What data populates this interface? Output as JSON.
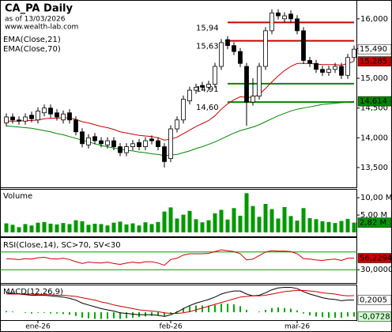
{
  "chart_data": [
    {
      "type": "candlestick",
      "title": "CA_PA Daily",
      "subtitle": "as of 13/03/2026",
      "source": "www.wealth-lab.com",
      "categories": [
        null,
        null,
        null,
        null,
        null,
        "ene-26",
        null,
        null,
        null,
        null,
        null,
        null,
        null,
        null,
        null,
        null,
        null,
        null,
        null,
        null,
        null,
        null,
        null,
        null,
        null,
        null,
        "feb-26",
        null,
        null,
        null,
        null,
        null,
        null,
        null,
        null,
        null,
        null,
        null,
        null,
        null,
        null,
        null,
        null,
        null,
        null,
        null,
        "mar-26",
        null,
        null,
        null,
        null,
        null,
        null,
        null,
        null,
        null
      ],
      "open": [
        14.25,
        14.35,
        14.3,
        14.28,
        14.38,
        14.3,
        14.42,
        14.5,
        14.42,
        14.3,
        14.42,
        14.3,
        14.1,
        13.88,
        14.02,
        13.95,
        13.88,
        13.95,
        13.85,
        13.75,
        13.85,
        13.92,
        13.85,
        13.98,
        13.95,
        13.85,
        13.65,
        14.15,
        14.3,
        14.62,
        14.8,
        14.88,
        14.85,
        14.9,
        15.2,
        15.65,
        15.55,
        15.45,
        15.2,
        14.6,
        14.7,
        15.2,
        15.8,
        16.1,
        16.0,
        16.08,
        16.0,
        15.8,
        15.3,
        15.25,
        15.15,
        15.1,
        15.15,
        15.2,
        15.05,
        15.35
      ],
      "high": [
        14.41,
        14.41,
        14.36,
        14.41,
        14.44,
        14.51,
        14.56,
        14.56,
        14.48,
        14.46,
        14.48,
        14.36,
        14.16,
        14.06,
        14.08,
        14.01,
        14.01,
        14.01,
        13.91,
        13.91,
        13.96,
        13.98,
        14.01,
        14.04,
        14.01,
        13.91,
        14.21,
        14.36,
        14.71,
        14.86,
        14.91,
        14.94,
        14.96,
        15.26,
        15.66,
        15.71,
        15.61,
        15.51,
        15.26,
        15.0,
        15.26,
        15.86,
        16.16,
        16.16,
        16.11,
        16.14,
        16.06,
        15.86,
        15.36,
        15.31,
        15.21,
        15.21,
        15.26,
        15.26,
        15.41,
        15.55
      ],
      "low": [
        14.19,
        14.24,
        14.22,
        14.22,
        14.26,
        14.24,
        14.36,
        14.34,
        14.29,
        14.24,
        14.24,
        14.04,
        13.84,
        13.82,
        13.89,
        13.84,
        13.82,
        13.79,
        13.69,
        13.69,
        13.79,
        13.79,
        13.79,
        13.89,
        13.79,
        13.5,
        13.59,
        14.09,
        14.24,
        14.56,
        14.74,
        14.79,
        14.79,
        14.84,
        15.14,
        15.49,
        15.39,
        15.19,
        14.2,
        14.54,
        14.64,
        15.14,
        15.74,
        15.99,
        15.94,
        15.94,
        15.74,
        15.24,
        15.19,
        15.09,
        15.04,
        15.04,
        15.09,
        14.99,
        14.99,
        15.29
      ],
      "close": [
        14.35,
        14.3,
        14.28,
        14.35,
        14.32,
        14.45,
        14.5,
        14.4,
        14.35,
        14.4,
        14.3,
        14.1,
        13.9,
        14.0,
        13.95,
        13.9,
        13.95,
        13.85,
        13.75,
        13.85,
        13.9,
        13.85,
        13.95,
        13.95,
        13.85,
        13.6,
        14.15,
        14.3,
        14.65,
        14.8,
        14.85,
        14.85,
        14.9,
        15.2,
        15.6,
        15.55,
        15.45,
        15.25,
        14.6,
        14.7,
        15.2,
        15.8,
        16.1,
        16.05,
        16.05,
        16.0,
        15.8,
        15.3,
        15.25,
        15.15,
        15.1,
        15.15,
        15.2,
        15.05,
        15.35,
        15.49
      ],
      "close_label": "15,490",
      "up_color": "#ffffff",
      "down_color": "#000000",
      "ylim": [
        13.18,
        16.29
      ],
      "yticks": [
        {
          "value": 13.5,
          "label": "13,500"
        },
        {
          "value": 14,
          "label": "14,000"
        },
        {
          "value": 14.5,
          "label": "14,500"
        },
        {
          "value": 15,
          "label": "15,000"
        },
        {
          "value": 15.5,
          "label": "15,500"
        },
        {
          "value": 16,
          "label": "16,000"
        }
      ],
      "series": [
        {
          "name": "EMA(Close,21)",
          "color": "#cc0000",
          "last_label": "15,285",
          "values": [
            14.28,
            14.28,
            14.28,
            14.29,
            14.29,
            14.3,
            14.32,
            14.33,
            14.33,
            14.34,
            14.33,
            14.31,
            14.27,
            14.25,
            14.22,
            14.19,
            14.17,
            14.14,
            14.1,
            14.08,
            14.06,
            14.04,
            14.03,
            14.02,
            14.0,
            13.96,
            13.98,
            14.01,
            14.07,
            14.13,
            14.19,
            14.24,
            14.29,
            14.37,
            14.48,
            14.57,
            14.64,
            14.69,
            14.68,
            14.68,
            14.73,
            14.83,
            14.94,
            15.04,
            15.13,
            15.2,
            15.25,
            15.25,
            15.25,
            15.24,
            15.23,
            15.23,
            15.23,
            15.22,
            15.25,
            15.285
          ]
        },
        {
          "name": "EMA(Close,70)",
          "color": "#008800",
          "last_label": "14,614",
          "values": [
            14.2,
            14.19,
            14.18,
            14.17,
            14.16,
            14.14,
            14.12,
            14.1,
            14.07,
            14.05,
            14.02,
            13.99,
            13.96,
            13.93,
            13.9,
            13.87,
            13.85,
            13.83,
            13.81,
            13.79,
            13.78,
            13.76,
            13.75,
            13.73,
            13.72,
            13.7,
            13.71,
            13.72,
            13.75,
            13.78,
            13.82,
            13.85,
            13.89,
            13.93,
            13.98,
            14.03,
            14.08,
            14.12,
            14.15,
            14.18,
            14.22,
            14.27,
            14.32,
            14.37,
            14.41,
            14.45,
            14.48,
            14.5,
            14.52,
            14.54,
            14.56,
            14.57,
            14.58,
            14.59,
            14.6,
            14.614
          ]
        }
      ],
      "levels": [
        {
          "value": 15.94,
          "label": "15,94",
          "color": "#cc0000"
        },
        {
          "value": 15.63,
          "label": "15,63",
          "color": "#cc0000"
        },
        {
          "value": 14.91,
          "label": "14,91",
          "color": "#008800"
        },
        {
          "value": 14.6,
          "label": "14,60",
          "color": "#008800"
        }
      ]
    },
    {
      "type": "bar",
      "title": "Volume",
      "color": "#009900",
      "last_label": "2,82 M",
      "values": [
        2.6,
        2.2,
        1.5,
        2.4,
        2.0,
        2.8,
        3.0,
        2.5,
        2.3,
        2.7,
        2.4,
        3.5,
        3.2,
        2.2,
        2.5,
        2.4,
        2.0,
        2.8,
        3.1,
        2.3,
        2.6,
        2.0,
        2.9,
        2.4,
        3.0,
        6.0,
        7.2,
        4.0,
        5.1,
        6.2,
        3.8,
        2.9,
        3.5,
        5.5,
        6.5,
        3.7,
        7.0,
        4.8,
        11.3,
        7.6,
        4.5,
        8.2,
        6.7,
        4.0,
        7.3,
        4.7,
        3.4,
        7.0,
        4.1,
        3.8,
        3.2,
        3.0,
        2.7,
        3.3,
        3.9,
        2.82
      ],
      "ylim": [
        0,
        12.3
      ],
      "yticks": [
        {
          "value": 5,
          "label": "5,00 M"
        },
        {
          "value": 10,
          "label": "10,00 M"
        }
      ]
    },
    {
      "type": "line",
      "title": "RSI(Close,14), SC>70, SV<30",
      "levels": [
        70,
        30
      ],
      "level_color": "#009900",
      "series": [
        {
          "color": "#cc0000",
          "last_label": "56,2294",
          "values": [
            55,
            54,
            53,
            55,
            54,
            57,
            58,
            55,
            54,
            56,
            53,
            48,
            44,
            47,
            46,
            45,
            47,
            44,
            42,
            45,
            47,
            45,
            48,
            48,
            45,
            40,
            53,
            56,
            63,
            66,
            66,
            66,
            67,
            71,
            75,
            73,
            71,
            66,
            52,
            54,
            62,
            70,
            73,
            72,
            72,
            71,
            66,
            55,
            54,
            52,
            51,
            53,
            54,
            51,
            56,
            56.2294
          ]
        }
      ],
      "ylim": [
        0,
        100
      ],
      "yticks": [
        {
          "value": 30,
          "label": "30,0000"
        }
      ]
    },
    {
      "type": "line",
      "title": "MACD(12,26,9)",
      "series": [
        {
          "type": "bar",
          "color": "#00aa00",
          "last_label": "-0,0728",
          "values": [
            0.02,
            0.01,
            0,
            -0.01,
            -0.02,
            -0.01,
            -0.01,
            -0.02,
            -0.02,
            -0.03,
            -0.04,
            -0.06,
            -0.09,
            -0.1,
            -0.11,
            -0.11,
            -0.11,
            -0.1,
            -0.11,
            -0.1,
            -0.09,
            -0.08,
            -0.07,
            -0.06,
            -0.06,
            -0.06,
            -0.02,
            0.02,
            0.07,
            0.1,
            0.11,
            0.11,
            0.11,
            0.12,
            0.14,
            0.14,
            0.13,
            0.1,
            0.04,
            0.0,
            0.01,
            0.04,
            0.07,
            0.08,
            0.07,
            0.06,
            0.03,
            -0.02,
            -0.05,
            -0.07,
            -0.08,
            -0.09,
            -0.09,
            -0.09,
            -0.07,
            -0.0728
          ]
        },
        {
          "color": "#000000",
          "last_label": "0,2005",
          "values": [
            0.32,
            0.31,
            0.3,
            0.29,
            0.28,
            0.28,
            0.28,
            0.27,
            0.26,
            0.25,
            0.23,
            0.2,
            0.15,
            0.12,
            0.09,
            0.06,
            0.04,
            0.02,
            -0.01,
            -0.02,
            -0.03,
            -0.04,
            -0.04,
            -0.04,
            -0.05,
            -0.07,
            -0.04,
            0.0,
            0.06,
            0.11,
            0.15,
            0.18,
            0.21,
            0.25,
            0.3,
            0.33,
            0.35,
            0.35,
            0.3,
            0.27,
            0.28,
            0.32,
            0.37,
            0.4,
            0.41,
            0.41,
            0.39,
            0.34,
            0.3,
            0.27,
            0.24,
            0.22,
            0.21,
            0.19,
            0.2,
            0.2005
          ]
        },
        {
          "color": "#cc0000",
          "values": [
            0.3,
            0.3,
            0.3,
            0.3,
            0.3,
            0.29,
            0.29,
            0.29,
            0.28,
            0.28,
            0.27,
            0.26,
            0.24,
            0.22,
            0.2,
            0.17,
            0.15,
            0.12,
            0.1,
            0.08,
            0.06,
            0.04,
            0.03,
            0.02,
            0.01,
            -0.01,
            -0.02,
            -0.02,
            -0.01,
            0.01,
            0.04,
            0.07,
            0.1,
            0.13,
            0.16,
            0.19,
            0.22,
            0.25,
            0.26,
            0.27,
            0.27,
            0.28,
            0.3,
            0.32,
            0.34,
            0.35,
            0.36,
            0.36,
            0.35,
            0.34,
            0.32,
            0.31,
            0.3,
            0.28,
            0.27,
            0.2733
          ]
        }
      ],
      "ylim": [
        -0.13,
        0.43
      ],
      "yticks": []
    }
  ]
}
